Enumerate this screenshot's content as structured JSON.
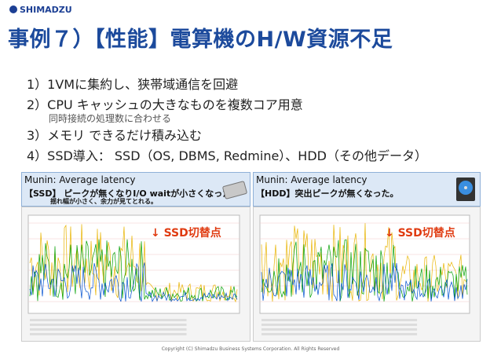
{
  "header": {
    "logo": "SHIMADZU",
    "title": "事例７）【性能】電算機のH/W資源不足"
  },
  "bullets": [
    {
      "text": "1）1VMに集約し、狭帯域通信を回避"
    },
    {
      "text": "2）CPU キャッシュの大きなものを複数コア用意",
      "sub": "同時接続の処理数に合わせる"
    },
    {
      "text": "3）メモリ できるだけ積み込む"
    },
    {
      "text": "4）SSD導入： SSD（OS, DBMS, Redmine）、HDD（その他データ）"
    }
  ],
  "panels": [
    {
      "heading": "Munin: Average latency",
      "caption": "【SSD】 ピークが無くなりI/O waitが小さくなった。",
      "caption2": "揺れ幅が小さく、余力が見てとれる。",
      "annotation": "↓ SSD切替点"
    },
    {
      "heading": "Munin: Average latency",
      "caption": "【HDD】突出ピークが無くなった。",
      "annotation": "↓ SSD切替点"
    }
  ],
  "footer": "Copyright (C) Shimadzu Business Systems Corporation. All Rights Reserved"
}
